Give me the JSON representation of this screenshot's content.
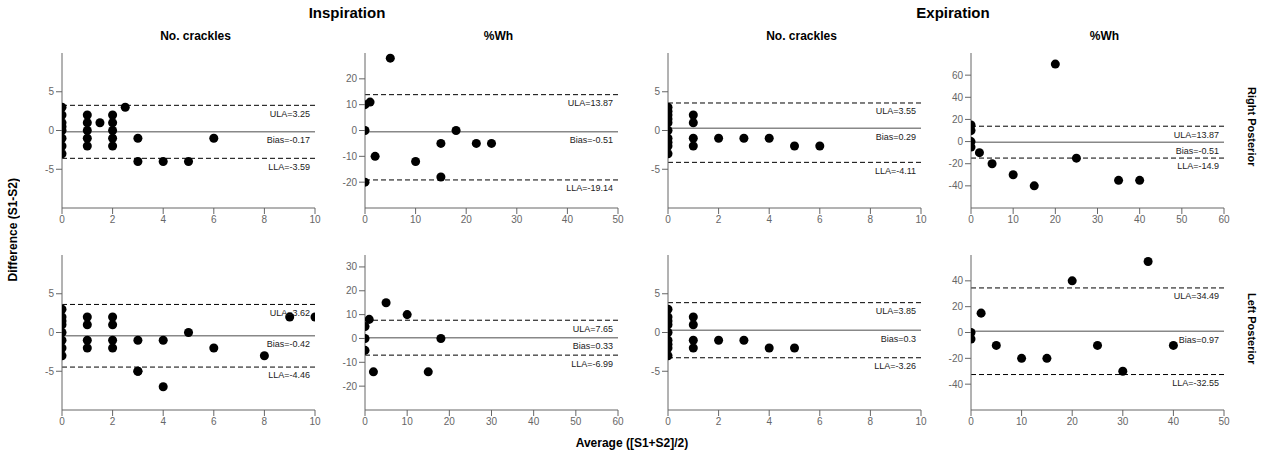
{
  "group_titles": [
    "Inspiration",
    "Expiration"
  ],
  "row_labels": [
    "Right Posterior",
    "Left Posterior"
  ],
  "xlabel": "Average ([S1+S2]/2)",
  "ylabel": "Difference (S1-S2)",
  "chart_data": [
    {
      "type": "scatter",
      "title": "No. crackles",
      "xlim": [
        0,
        10
      ],
      "ylim": [
        -10,
        10
      ],
      "xticks": [
        0,
        2,
        4,
        6,
        8,
        10
      ],
      "yticks": [
        -5,
        0,
        5
      ],
      "grid": false,
      "color": "#000000",
      "marker": "circle",
      "x": [
        0,
        0,
        0,
        0,
        0,
        0,
        0,
        0,
        1,
        1,
        1,
        1,
        1,
        1.5,
        2,
        2,
        2,
        2,
        2,
        2.5,
        3,
        3,
        4,
        5,
        6
      ],
      "values": [
        0,
        1,
        2,
        3,
        -1,
        -2,
        -3,
        0.5,
        1,
        2,
        -1,
        -2,
        0,
        1,
        0,
        1,
        -1,
        2,
        -2,
        3,
        -1,
        -4,
        -4,
        -4,
        -1
      ],
      "reference_lines": [
        {
          "label": "ULA=3.25",
          "value": 3.25,
          "color": "#000000",
          "line_style": "dashed"
        },
        {
          "label": "Bias=-0.17",
          "value": -0.17,
          "color": "#888888",
          "line_style": "solid"
        },
        {
          "label": "LLA=-3.59",
          "value": -3.59,
          "color": "#000000",
          "line_style": "dashed"
        }
      ]
    },
    {
      "type": "scatter",
      "title": "%Wh",
      "xlim": [
        0,
        50
      ],
      "ylim": [
        -30,
        30
      ],
      "xticks": [
        0,
        10,
        20,
        30,
        40,
        50
      ],
      "yticks": [
        -20,
        -10,
        0,
        10,
        20
      ],
      "grid": false,
      "color": "#000000",
      "marker": "circle",
      "x": [
        0,
        0,
        0,
        1,
        2,
        5,
        10,
        15,
        15,
        18,
        22,
        25
      ],
      "values": [
        0,
        10,
        -20,
        11,
        -10,
        28,
        -12,
        -5,
        -18,
        0,
        -5,
        -5
      ],
      "reference_lines": [
        {
          "label": "ULA=13.87",
          "value": 13.87,
          "color": "#000000",
          "line_style": "dashed"
        },
        {
          "label": "Bias=-0.51",
          "value": -0.51,
          "color": "#888888",
          "line_style": "solid"
        },
        {
          "label": "LLA=-19.14",
          "value": -19.14,
          "color": "#000000",
          "line_style": "dashed"
        }
      ]
    },
    {
      "type": "scatter",
      "title": "No. crackles",
      "xlim": [
        0,
        10
      ],
      "ylim": [
        -10,
        10
      ],
      "xticks": [
        0,
        2,
        4,
        6,
        8,
        10
      ],
      "yticks": [
        -5,
        0,
        5
      ],
      "grid": false,
      "color": "#000000",
      "marker": "circle",
      "x": [
        0,
        0,
        0,
        0,
        0,
        0,
        0,
        0,
        0,
        0,
        1,
        1,
        1,
        1,
        2,
        3,
        4,
        5,
        6
      ],
      "values": [
        0,
        1,
        2,
        -1,
        -2,
        3,
        -3,
        1.5,
        -1.5,
        2.5,
        1,
        -1,
        2,
        -2,
        -1,
        -1,
        -1,
        -2,
        -2
      ],
      "reference_lines": [
        {
          "label": "ULA=3.55",
          "value": 3.55,
          "color": "#000000",
          "line_style": "dashed"
        },
        {
          "label": "Bias=0.29",
          "value": 0.29,
          "color": "#888888",
          "line_style": "solid"
        },
        {
          "label": "LLA=-4.11",
          "value": -4.11,
          "color": "#000000",
          "line_style": "dashed"
        }
      ]
    },
    {
      "type": "scatter",
      "title": "%Wh",
      "xlim": [
        0,
        60
      ],
      "ylim": [
        -60,
        80
      ],
      "xticks": [
        0,
        10,
        20,
        30,
        40,
        50,
        60
      ],
      "yticks": [
        -40,
        -20,
        0,
        20,
        40,
        60
      ],
      "grid": false,
      "color": "#000000",
      "marker": "circle",
      "x": [
        0,
        0,
        0,
        0,
        2,
        5,
        10,
        15,
        20,
        25,
        35,
        40
      ],
      "values": [
        0,
        10,
        15,
        -5,
        -10,
        -20,
        -30,
        -40,
        70,
        -15,
        -35,
        -35
      ],
      "reference_lines": [
        {
          "label": "ULA=13.87",
          "value": 13.87,
          "color": "#000000",
          "line_style": "dashed"
        },
        {
          "label": "Bias=-0.51",
          "value": -0.51,
          "color": "#888888",
          "line_style": "solid"
        },
        {
          "label": "LLA=-14.9",
          "value": -14.9,
          "color": "#000000",
          "line_style": "dashed"
        }
      ]
    },
    {
      "type": "scatter",
      "xlim": [
        0,
        10
      ],
      "ylim": [
        -10,
        10
      ],
      "xticks": [
        0,
        2,
        4,
        6,
        8,
        10
      ],
      "yticks": [
        -5,
        0,
        5
      ],
      "grid": false,
      "color": "#000000",
      "marker": "circle",
      "x": [
        0,
        0,
        0,
        0,
        0,
        0,
        0,
        0,
        1,
        1,
        1,
        1,
        2,
        2,
        2,
        2,
        3,
        3,
        3,
        4,
        4,
        5,
        6,
        8,
        9,
        10
      ],
      "values": [
        0,
        1,
        2,
        -1,
        -2,
        3,
        -3,
        1.5,
        1,
        -1,
        2,
        -2,
        -1,
        -2,
        1,
        2,
        -1,
        -5,
        -5,
        -7,
        -1,
        0,
        -2,
        -3,
        2,
        2
      ],
      "reference_lines": [
        {
          "label": "ULA=3.62",
          "value": 3.62,
          "color": "#000000",
          "line_style": "dashed"
        },
        {
          "label": "Bias=-0.42",
          "value": -0.42,
          "color": "#888888",
          "line_style": "solid"
        },
        {
          "label": "LLA=-4.46",
          "value": -4.46,
          "color": "#000000",
          "line_style": "dashed"
        }
      ]
    },
    {
      "type": "scatter",
      "xlim": [
        0,
        60
      ],
      "ylim": [
        -30,
        35
      ],
      "xticks": [
        0,
        10,
        20,
        30,
        40,
        50,
        60
      ],
      "yticks": [
        -20,
        -10,
        0,
        10,
        20,
        30
      ],
      "grid": false,
      "color": "#000000",
      "marker": "circle",
      "x": [
        0,
        0,
        0,
        1,
        2,
        5,
        10,
        15,
        18
      ],
      "values": [
        0,
        5,
        -5,
        8,
        -14,
        15,
        10,
        -14,
        0
      ],
      "reference_lines": [
        {
          "label": "ULA=7.65",
          "value": 7.65,
          "color": "#000000",
          "line_style": "dashed"
        },
        {
          "label": "Bias=0.33",
          "value": 0.33,
          "color": "#888888",
          "line_style": "solid"
        },
        {
          "label": "LLA=-6.99",
          "value": -6.99,
          "color": "#000000",
          "line_style": "dashed"
        }
      ]
    },
    {
      "type": "scatter",
      "xlim": [
        0,
        10
      ],
      "ylim": [
        -10,
        10
      ],
      "xticks": [
        0,
        2,
        4,
        6,
        8,
        10
      ],
      "yticks": [
        -5,
        0,
        5
      ],
      "grid": false,
      "color": "#000000",
      "marker": "circle",
      "x": [
        0,
        0,
        0,
        0,
        0,
        0,
        0,
        0,
        0,
        1,
        1,
        1,
        1,
        2,
        3,
        4,
        5
      ],
      "values": [
        0,
        1,
        2,
        -1,
        -2,
        3,
        -3,
        1.5,
        -1.5,
        1,
        -1,
        2,
        -2,
        -1,
        -1,
        -2,
        -2
      ],
      "reference_lines": [
        {
          "label": "ULA=3.85",
          "value": 3.85,
          "color": "#000000",
          "line_style": "dashed"
        },
        {
          "label": "Bias=0.3",
          "value": 0.3,
          "color": "#888888",
          "line_style": "solid"
        },
        {
          "label": "LLA=-3.26",
          "value": -3.26,
          "color": "#000000",
          "line_style": "dashed"
        }
      ]
    },
    {
      "type": "scatter",
      "xlim": [
        0,
        50
      ],
      "ylim": [
        -60,
        60
      ],
      "xticks": [
        0,
        10,
        20,
        30,
        40,
        50
      ],
      "yticks": [
        -40,
        -20,
        0,
        20,
        40
      ],
      "grid": false,
      "color": "#000000",
      "marker": "circle",
      "x": [
        0,
        0,
        2,
        5,
        10,
        15,
        20,
        25,
        30,
        35,
        40
      ],
      "values": [
        0,
        -5,
        15,
        -10,
        -20,
        -20,
        40,
        -10,
        -30,
        55,
        -10
      ],
      "reference_lines": [
        {
          "label": "ULA=34.49",
          "value": 34.49,
          "color": "#000000",
          "line_style": "dashed"
        },
        {
          "label": "Bias=0.97",
          "value": 0.97,
          "color": "#888888",
          "line_style": "solid"
        },
        {
          "label": "LLA=-32.55",
          "value": -32.55,
          "color": "#000000",
          "line_style": "dashed"
        }
      ]
    }
  ]
}
